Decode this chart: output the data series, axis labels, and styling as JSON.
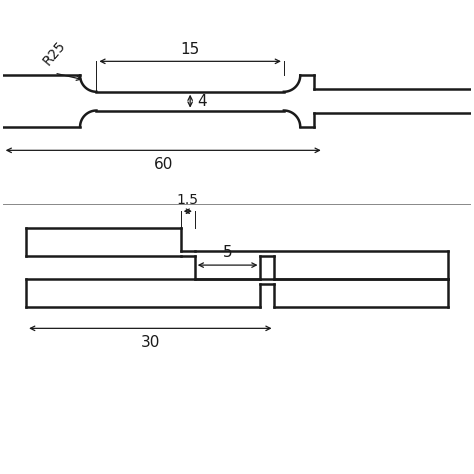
{
  "bg_color": "#ffffff",
  "line_color": "#1a1a1a",
  "fig_width": 4.74,
  "fig_height": 4.74,
  "dpi": 100,
  "top_diagram": {
    "label_15": "15",
    "label_4": "4",
    "label_60": "60",
    "label_R25": "R25"
  },
  "bottom_diagram": {
    "label_1p5": "1.5",
    "label_5": "5",
    "label_30": "30"
  }
}
